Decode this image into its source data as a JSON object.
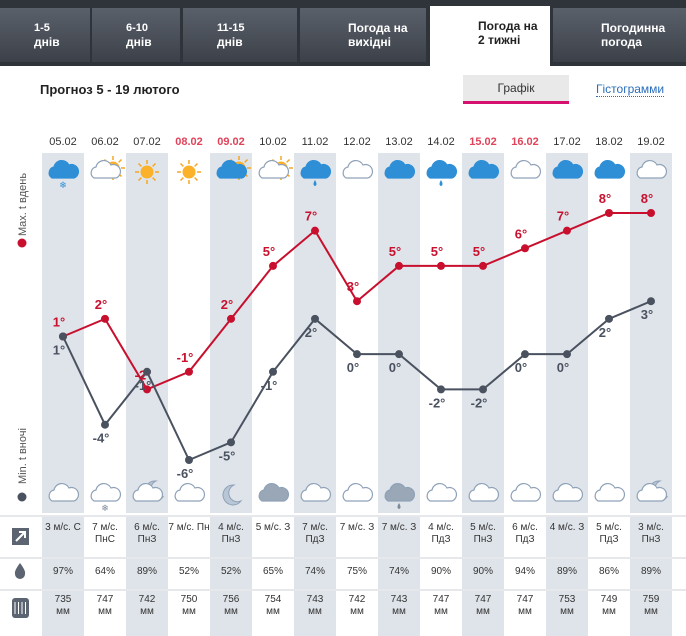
{
  "tabs": [
    {
      "lines": [
        "1-5",
        "днів"
      ]
    },
    {
      "lines": [
        "6-10",
        "днів"
      ]
    },
    {
      "lines": [
        "11-15",
        "днів"
      ]
    },
    {
      "lines": [
        "Погода на",
        "вихідні"
      ]
    },
    {
      "lines": [
        "Погода на",
        "2 тижні"
      ]
    },
    {
      "lines": [
        "Погодинна",
        "погода"
      ]
    }
  ],
  "heading": "Прогноз 5 - 19 лютого",
  "view_buttons": [
    "Графік",
    "Гістограмми"
  ],
  "chart_data": {
    "type": "line",
    "categories": [
      "05.02",
      "06.02",
      "07.02",
      "08.02",
      "09.02",
      "10.02",
      "11.02",
      "12.02",
      "13.02",
      "14.02",
      "15.02",
      "16.02",
      "17.02",
      "18.02",
      "19.02"
    ],
    "category_colors": [
      "#333333",
      "#333333",
      "#333333",
      "#e0435a",
      "#e0435a",
      "#333333",
      "#333333",
      "#333333",
      "#333333",
      "#333333",
      "#e0435a",
      "#e0435a",
      "#333333",
      "#333333",
      "#333333"
    ],
    "series": [
      {
        "name": "Max. t вдень",
        "color": "#c8102e",
        "values": [
          1,
          2,
          -2,
          -1,
          2,
          5,
          7,
          3,
          5,
          5,
          5,
          6,
          7,
          8,
          8
        ],
        "value_labels": [
          "1°",
          "2°",
          "-2°",
          "-1°",
          "2°",
          "5°",
          "7°",
          "3°",
          "5°",
          "5°",
          "5°",
          "6°",
          "7°",
          "8°",
          "8°"
        ]
      },
      {
        "name": "Min. t вночі",
        "color": "#4a5260",
        "values": [
          1,
          -4,
          -1,
          -6,
          -5,
          -1,
          2,
          0,
          0,
          -2,
          -2,
          0,
          0,
          2,
          3
        ],
        "value_labels": [
          "1°",
          "-4°",
          "-1°",
          "-6°",
          "-5°",
          "-1°",
          "2°",
          "0°",
          "0°",
          "-2°",
          "-2°",
          "0°",
          "0°",
          "2°",
          "3°"
        ]
      }
    ]
  },
  "table": {
    "rows": [
      [
        "3 м/с. С",
        "7 м/с. ПнС",
        "6 м/с. ПнЗ",
        "7 м/с. Пн",
        "4 м/с. ПнЗ",
        "5 м/с. З",
        "7 м/с. ПдЗ",
        "7 м/с. З",
        "7 м/с. З",
        "4 м/с. ПдЗ",
        "5 м/с. ПнЗ",
        "6 м/с. ПдЗ",
        "4 м/с. З",
        "5 м/с. ПдЗ",
        "3 м/с. ПнЗ"
      ],
      [
        "97%",
        "64%",
        "89%",
        "52%",
        "52%",
        "65%",
        "74%",
        "75%",
        "74%",
        "90%",
        "90%",
        "94%",
        "89%",
        "86%",
        "89%"
      ],
      [
        "735 мм",
        "747 мм",
        "742 мм",
        "750 мм",
        "756 мм",
        "754 мм",
        "743 мм",
        "742 мм",
        "743 мм",
        "747 мм",
        "747 мм",
        "747 мм",
        "753 мм",
        "749 мм",
        "759 мм"
      ]
    ]
  }
}
